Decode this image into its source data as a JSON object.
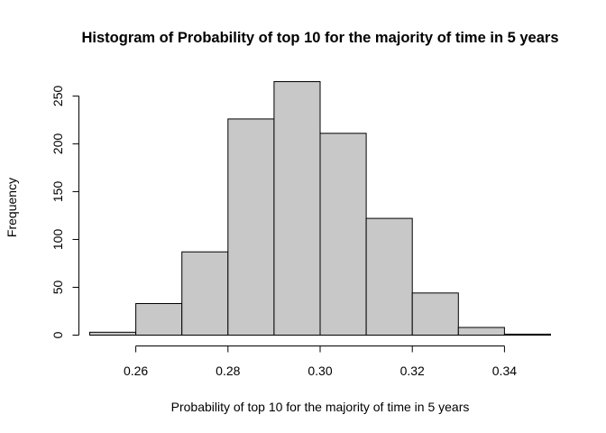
{
  "chart_data": {
    "type": "bar",
    "title": "Histogram of Probability of top 10 for the majority of time in 5 years",
    "xlabel": "Probability of top 10 for the majority of time in 5 years",
    "ylabel": "Frequency",
    "bin_edges": [
      0.25,
      0.26,
      0.27,
      0.28,
      0.29,
      0.3,
      0.31,
      0.32,
      0.33,
      0.34,
      0.35
    ],
    "values": [
      3,
      33,
      87,
      226,
      265,
      211,
      122,
      44,
      8,
      1
    ],
    "x_ticks": [
      0.26,
      0.28,
      0.3,
      0.32,
      0.34
    ],
    "x_tick_labels": [
      "0.26",
      "0.28",
      "0.30",
      "0.32",
      "0.34"
    ],
    "y_ticks": [
      0,
      50,
      100,
      150,
      200,
      250
    ],
    "y_tick_labels": [
      "0",
      "50",
      "100",
      "150",
      "200",
      "250"
    ],
    "xlim": [
      0.25,
      0.35
    ],
    "ylim": [
      0,
      265
    ],
    "grid": false,
    "bar_color": "#c8c8c8",
    "edge_color": "#000000"
  }
}
